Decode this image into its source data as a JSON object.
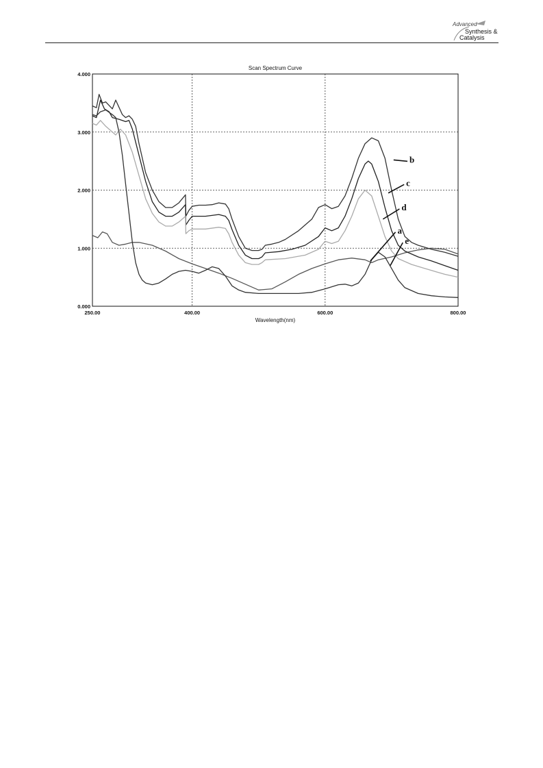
{
  "header": {
    "logo_line1": "Advanced",
    "logo_line2": "Synthesis &",
    "logo_line3": "Catalysis"
  },
  "chart_data": {
    "type": "line",
    "title": "Scan Spectrum Curve",
    "xlabel": "Wavelength(nm)",
    "ylabel": "",
    "xlim": [
      250,
      800
    ],
    "ylim": [
      0,
      4
    ],
    "x_ticks": [
      "250.00",
      "400.00",
      "600.00",
      "800.00"
    ],
    "x_tick_values": [
      250,
      400,
      600,
      800
    ],
    "y_ticks": [
      "0.000",
      "1.000",
      "2.000",
      "3.000",
      "4.000"
    ],
    "y_tick_values": [
      0,
      1,
      2,
      3,
      4
    ],
    "grid": true,
    "series": [
      {
        "name": "a",
        "color": "#555555",
        "points": [
          [
            250,
            1.22
          ],
          [
            258,
            1.18
          ],
          [
            265,
            1.28
          ],
          [
            272,
            1.25
          ],
          [
            280,
            1.1
          ],
          [
            290,
            1.05
          ],
          [
            300,
            1.07
          ],
          [
            310,
            1.1
          ],
          [
            320,
            1.1
          ],
          [
            340,
            1.05
          ],
          [
            360,
            0.95
          ],
          [
            380,
            0.82
          ],
          [
            400,
            0.73
          ],
          [
            420,
            0.65
          ],
          [
            440,
            0.57
          ],
          [
            460,
            0.48
          ],
          [
            480,
            0.38
          ],
          [
            500,
            0.28
          ],
          [
            520,
            0.3
          ],
          [
            540,
            0.42
          ],
          [
            560,
            0.55
          ],
          [
            580,
            0.65
          ],
          [
            600,
            0.73
          ],
          [
            620,
            0.8
          ],
          [
            640,
            0.83
          ],
          [
            660,
            0.8
          ],
          [
            670,
            0.75
          ],
          [
            680,
            0.8
          ],
          [
            700,
            0.85
          ],
          [
            720,
            0.92
          ],
          [
            740,
            0.97
          ],
          [
            760,
            1.0
          ],
          [
            780,
            0.98
          ],
          [
            800,
            0.9
          ]
        ]
      },
      {
        "name": "b",
        "color": "#333333",
        "points": [
          [
            250,
            3.45
          ],
          [
            256,
            3.42
          ],
          [
            260,
            3.65
          ],
          [
            265,
            3.5
          ],
          [
            270,
            3.52
          ],
          [
            280,
            3.4
          ],
          [
            285,
            3.55
          ],
          [
            295,
            3.3
          ],
          [
            300,
            3.25
          ],
          [
            305,
            3.28
          ],
          [
            310,
            3.22
          ],
          [
            315,
            3.1
          ],
          [
            320,
            2.8
          ],
          [
            330,
            2.3
          ],
          [
            340,
            2.0
          ],
          [
            350,
            1.8
          ],
          [
            360,
            1.7
          ],
          [
            370,
            1.7
          ],
          [
            380,
            1.78
          ],
          [
            385,
            1.85
          ],
          [
            390,
            1.92
          ],
          [
            390.5,
            1.55
          ],
          [
            395,
            1.65
          ],
          [
            400,
            1.72
          ],
          [
            410,
            1.74
          ],
          [
            420,
            1.74
          ],
          [
            430,
            1.75
          ],
          [
            440,
            1.78
          ],
          [
            450,
            1.76
          ],
          [
            455,
            1.68
          ],
          [
            460,
            1.5
          ],
          [
            470,
            1.2
          ],
          [
            480,
            1.0
          ],
          [
            490,
            0.96
          ],
          [
            500,
            0.96
          ],
          [
            505,
            0.98
          ],
          [
            510,
            1.05
          ],
          [
            520,
            1.07
          ],
          [
            530,
            1.1
          ],
          [
            540,
            1.15
          ],
          [
            560,
            1.3
          ],
          [
            580,
            1.5
          ],
          [
            590,
            1.7
          ],
          [
            600,
            1.75
          ],
          [
            610,
            1.68
          ],
          [
            620,
            1.72
          ],
          [
            630,
            1.9
          ],
          [
            640,
            2.2
          ],
          [
            650,
            2.55
          ],
          [
            660,
            2.8
          ],
          [
            670,
            2.9
          ],
          [
            680,
            2.85
          ],
          [
            690,
            2.55
          ],
          [
            700,
            2.0
          ],
          [
            710,
            1.5
          ],
          [
            720,
            1.2
          ],
          [
            730,
            1.1
          ],
          [
            740,
            1.05
          ],
          [
            760,
            0.98
          ],
          [
            780,
            0.93
          ],
          [
            800,
            0.86
          ]
        ]
      },
      {
        "name": "c",
        "color": "#222222",
        "points": [
          [
            250,
            3.28
          ],
          [
            256,
            3.25
          ],
          [
            262,
            3.55
          ],
          [
            268,
            3.4
          ],
          [
            275,
            3.35
          ],
          [
            280,
            3.25
          ],
          [
            290,
            3.22
          ],
          [
            300,
            3.18
          ],
          [
            305,
            3.2
          ],
          [
            310,
            3.05
          ],
          [
            320,
            2.6
          ],
          [
            330,
            2.15
          ],
          [
            340,
            1.8
          ],
          [
            350,
            1.62
          ],
          [
            360,
            1.55
          ],
          [
            370,
            1.55
          ],
          [
            380,
            1.62
          ],
          [
            390,
            1.75
          ],
          [
            390.5,
            1.4
          ],
          [
            395,
            1.48
          ],
          [
            400,
            1.55
          ],
          [
            420,
            1.55
          ],
          [
            440,
            1.58
          ],
          [
            450,
            1.55
          ],
          [
            455,
            1.48
          ],
          [
            460,
            1.32
          ],
          [
            470,
            1.05
          ],
          [
            480,
            0.88
          ],
          [
            490,
            0.82
          ],
          [
            500,
            0.82
          ],
          [
            505,
            0.85
          ],
          [
            510,
            0.92
          ],
          [
            530,
            0.94
          ],
          [
            550,
            0.98
          ],
          [
            570,
            1.05
          ],
          [
            590,
            1.2
          ],
          [
            600,
            1.35
          ],
          [
            610,
            1.3
          ],
          [
            620,
            1.35
          ],
          [
            630,
            1.55
          ],
          [
            640,
            1.85
          ],
          [
            650,
            2.2
          ],
          [
            660,
            2.45
          ],
          [
            665,
            2.5
          ],
          [
            670,
            2.45
          ],
          [
            680,
            2.15
          ],
          [
            690,
            1.7
          ],
          [
            700,
            1.3
          ],
          [
            710,
            1.05
          ],
          [
            720,
            0.95
          ],
          [
            740,
            0.85
          ],
          [
            760,
            0.78
          ],
          [
            780,
            0.7
          ],
          [
            800,
            0.62
          ]
        ]
      },
      {
        "name": "d",
        "color": "#aaaaaa",
        "points": [
          [
            250,
            3.15
          ],
          [
            256,
            3.12
          ],
          [
            262,
            3.2
          ],
          [
            270,
            3.1
          ],
          [
            280,
            3.0
          ],
          [
            285,
            2.95
          ],
          [
            292,
            3.05
          ],
          [
            300,
            2.95
          ],
          [
            310,
            2.65
          ],
          [
            320,
            2.25
          ],
          [
            330,
            1.85
          ],
          [
            340,
            1.6
          ],
          [
            350,
            1.45
          ],
          [
            360,
            1.38
          ],
          [
            370,
            1.38
          ],
          [
            380,
            1.45
          ],
          [
            390,
            1.55
          ],
          [
            390.5,
            1.25
          ],
          [
            395,
            1.3
          ],
          [
            400,
            1.33
          ],
          [
            420,
            1.33
          ],
          [
            440,
            1.36
          ],
          [
            450,
            1.34
          ],
          [
            455,
            1.25
          ],
          [
            460,
            1.1
          ],
          [
            470,
            0.88
          ],
          [
            480,
            0.75
          ],
          [
            490,
            0.72
          ],
          [
            500,
            0.72
          ],
          [
            505,
            0.75
          ],
          [
            510,
            0.8
          ],
          [
            540,
            0.82
          ],
          [
            570,
            0.88
          ],
          [
            590,
            0.98
          ],
          [
            600,
            1.12
          ],
          [
            610,
            1.08
          ],
          [
            620,
            1.12
          ],
          [
            630,
            1.3
          ],
          [
            640,
            1.55
          ],
          [
            650,
            1.85
          ],
          [
            660,
            2.0
          ],
          [
            670,
            1.9
          ],
          [
            680,
            1.55
          ],
          [
            690,
            1.2
          ],
          [
            700,
            0.95
          ],
          [
            710,
            0.82
          ],
          [
            730,
            0.72
          ],
          [
            750,
            0.65
          ],
          [
            780,
            0.55
          ],
          [
            800,
            0.5
          ]
        ]
      },
      {
        "name": "e",
        "color": "#333333",
        "points": [
          [
            250,
            3.3
          ],
          [
            256,
            3.28
          ],
          [
            262,
            3.35
          ],
          [
            270,
            3.38
          ],
          [
            280,
            3.3
          ],
          [
            285,
            3.25
          ],
          [
            290,
            3.0
          ],
          [
            295,
            2.6
          ],
          [
            300,
            2.1
          ],
          [
            305,
            1.6
          ],
          [
            310,
            1.1
          ],
          [
            315,
            0.75
          ],
          [
            320,
            0.55
          ],
          [
            325,
            0.45
          ],
          [
            330,
            0.4
          ],
          [
            340,
            0.37
          ],
          [
            350,
            0.4
          ],
          [
            360,
            0.47
          ],
          [
            370,
            0.55
          ],
          [
            380,
            0.6
          ],
          [
            390,
            0.62
          ],
          [
            400,
            0.6
          ],
          [
            410,
            0.57
          ],
          [
            420,
            0.62
          ],
          [
            430,
            0.68
          ],
          [
            440,
            0.65
          ],
          [
            450,
            0.52
          ],
          [
            460,
            0.35
          ],
          [
            470,
            0.28
          ],
          [
            480,
            0.24
          ],
          [
            500,
            0.22
          ],
          [
            520,
            0.22
          ],
          [
            540,
            0.22
          ],
          [
            560,
            0.22
          ],
          [
            580,
            0.24
          ],
          [
            600,
            0.3
          ],
          [
            620,
            0.37
          ],
          [
            630,
            0.38
          ],
          [
            640,
            0.35
          ],
          [
            650,
            0.4
          ],
          [
            660,
            0.55
          ],
          [
            670,
            0.8
          ],
          [
            680,
            0.93
          ],
          [
            690,
            0.85
          ],
          [
            700,
            0.65
          ],
          [
            710,
            0.45
          ],
          [
            720,
            0.32
          ],
          [
            740,
            0.22
          ],
          [
            760,
            0.18
          ],
          [
            780,
            0.16
          ],
          [
            800,
            0.15
          ]
        ]
      }
    ],
    "annotations": [
      {
        "text": "b",
        "x": 703,
        "y": 2.52,
        "label_x": 730,
        "label_y": 2.52
      },
      {
        "text": "c",
        "x": 695,
        "y": 1.95,
        "label_x": 725,
        "label_y": 2.12
      },
      {
        "text": "d",
        "x": 687,
        "y": 1.5,
        "label_x": 718,
        "label_y": 1.7
      },
      {
        "text": "a",
        "x": 668,
        "y": 0.78,
        "label_x": 712,
        "label_y": 1.3
      },
      {
        "text": "e",
        "x": 698,
        "y": 0.7,
        "label_x": 723,
        "label_y": 1.12
      }
    ]
  }
}
